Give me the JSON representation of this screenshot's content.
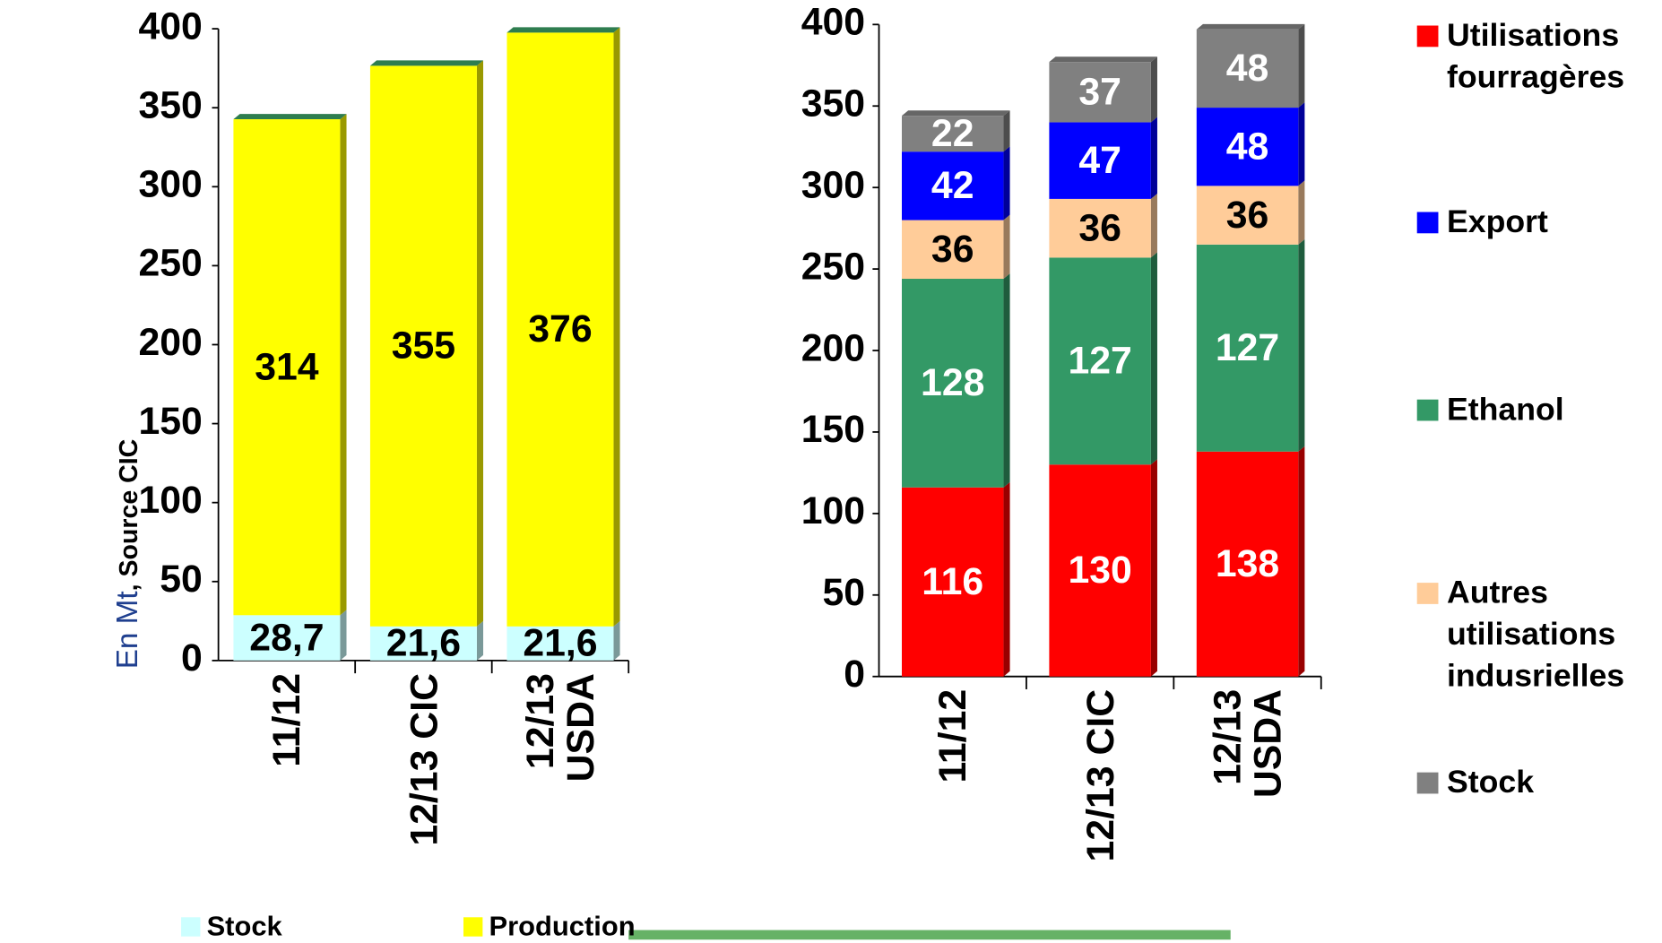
{
  "chart_data": [
    {
      "type": "bar",
      "stacked": true,
      "y_label": "En Mt",
      "y_label_source": ", Source CIC",
      "categories": [
        "11/12",
        "12/13 CIC",
        "12/13 USDA"
      ],
      "series": [
        {
          "name": "Stock",
          "color": "#ccffff",
          "label_color": "#000000",
          "values": [
            28.7,
            21.6,
            21.6
          ],
          "value_labels": [
            "28,7",
            "21,6",
            "21,6"
          ]
        },
        {
          "name": "Production",
          "color": "#ffff00",
          "label_color": "#000000",
          "values": [
            314,
            355,
            376
          ]
        }
      ],
      "ylim": [
        0,
        400
      ],
      "yticks": [
        0,
        50,
        100,
        150,
        200,
        250,
        300,
        350,
        400
      ],
      "legend": "bottom"
    },
    {
      "type": "bar",
      "stacked": true,
      "categories": [
        "11/12",
        "12/13 CIC",
        "12/13 USDA"
      ],
      "series": [
        {
          "name": "Utilisations fourragères",
          "color": "#ff0000",
          "label_color": "#ffffff",
          "values": [
            116,
            130,
            138
          ]
        },
        {
          "name": "Ethanol",
          "color": "#339966",
          "label_color": "#ffffff",
          "values": [
            128,
            127,
            127
          ]
        },
        {
          "name": "Autres utilisations indusrielles",
          "color": "#ffcc99",
          "label_color": "#000000",
          "values": [
            36,
            36,
            36
          ]
        },
        {
          "name": "Export",
          "color": "#0000ff",
          "label_color": "#ffffff",
          "values": [
            42,
            47,
            48
          ]
        },
        {
          "name": "Stock",
          "color": "#808080",
          "label_color": "#ffffff",
          "values": [
            22,
            37,
            48
          ]
        }
      ],
      "ylim": [
        0,
        400
      ],
      "yticks": [
        0,
        50,
        100,
        150,
        200,
        250,
        300,
        350,
        400
      ],
      "legend": "right"
    }
  ]
}
